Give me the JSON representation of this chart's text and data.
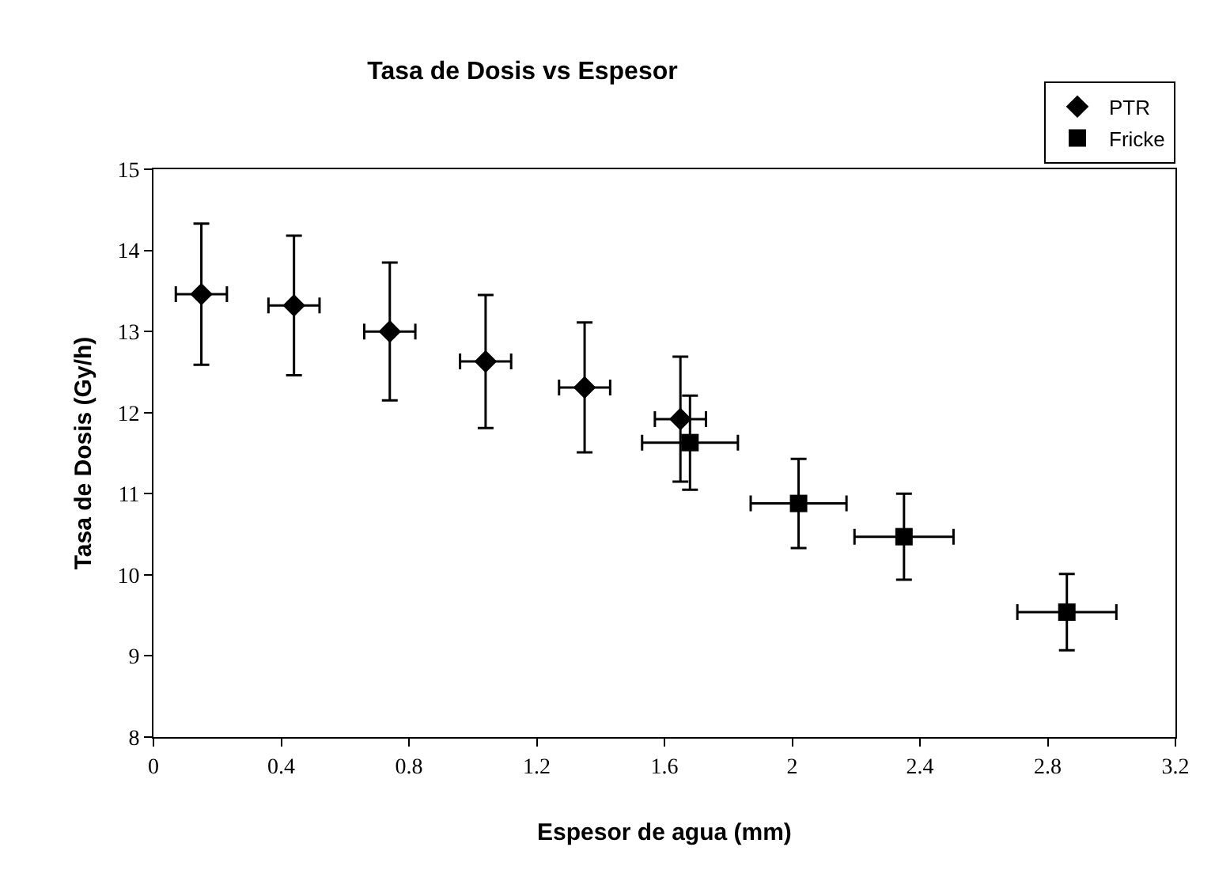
{
  "chart_data": {
    "type": "scatter",
    "title": "Tasa de Dosis vs Espesor",
    "xlabel": "Espesor de agua (mm)",
    "ylabel": "Tasa de Dosis (Gy/h)",
    "xlim": [
      0,
      3.2
    ],
    "xticks": [
      0,
      0.4,
      0.8,
      1.2,
      1.6,
      2,
      2.4,
      2.8,
      3.2
    ],
    "ylim": [
      8,
      15
    ],
    "yticks": [
      8,
      9,
      10,
      11,
      12,
      13,
      14,
      15
    ],
    "legend": "top right",
    "series": [
      {
        "name": "PTR",
        "color": "#000000",
        "marker": "diamond",
        "x": [
          0.15,
          0.44,
          0.74,
          1.04,
          1.35,
          1.65
        ],
        "values": [
          13.46,
          13.32,
          13.0,
          12.63,
          12.31,
          11.92
        ],
        "errors": [
          0.87,
          0.86,
          0.85,
          0.82,
          0.8,
          0.77
        ],
        "xerrors": [
          0.08,
          0.08,
          0.08,
          0.08,
          0.08,
          0.08
        ]
      },
      {
        "name": "Fricke",
        "color": "#000000",
        "marker": "square",
        "x": [
          1.68,
          2.02,
          2.35,
          2.86
        ],
        "values": [
          11.63,
          10.88,
          10.47,
          9.54
        ],
        "errors": [
          0.58,
          0.55,
          0.53,
          0.47
        ],
        "xerrors": [
          0.15,
          0.15,
          0.155,
          0.155
        ]
      }
    ]
  }
}
